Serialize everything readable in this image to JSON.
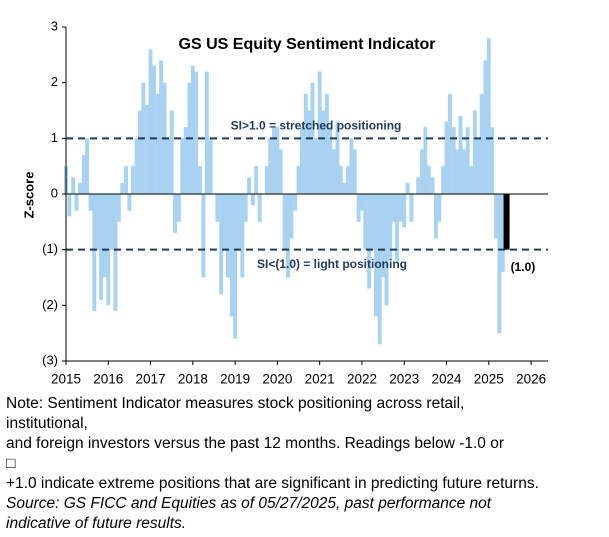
{
  "chart_data": {
    "type": "bar",
    "title": "GS US Equity Sentiment Indicator",
    "y_label": "Z-score",
    "color": "#a9d2f1",
    "xlim": [
      2015,
      2026.4
    ],
    "xticks": [
      2015,
      2016,
      2017,
      2018,
      2019,
      2020,
      2021,
      2022,
      2023,
      2024,
      2025,
      2026
    ],
    "ylim": [
      -3,
      3
    ],
    "yticks": [
      3,
      2,
      1,
      0,
      {
        "value": -1,
        "label": "(1)"
      },
      {
        "value": -2,
        "label": "(2)"
      },
      {
        "value": -3,
        "label": "(3)"
      }
    ],
    "x": [
      2015.0,
      2015.08,
      2015.17,
      2015.25,
      2015.33,
      2015.42,
      2015.5,
      2015.58,
      2015.67,
      2015.75,
      2015.83,
      2015.92,
      2016.0,
      2016.08,
      2016.17,
      2016.25,
      2016.33,
      2016.42,
      2016.5,
      2016.58,
      2016.67,
      2016.75,
      2016.83,
      2016.92,
      2017.0,
      2017.08,
      2017.17,
      2017.25,
      2017.33,
      2017.42,
      2017.5,
      2017.58,
      2017.67,
      2017.75,
      2017.83,
      2017.92,
      2018.0,
      2018.08,
      2018.17,
      2018.25,
      2018.33,
      2018.42,
      2018.5,
      2018.58,
      2018.67,
      2018.75,
      2018.83,
      2018.92,
      2019.0,
      2019.08,
      2019.17,
      2019.25,
      2019.33,
      2019.42,
      2019.5,
      2019.58,
      2019.67,
      2019.75,
      2019.83,
      2019.92,
      2020.0,
      2020.08,
      2020.17,
      2020.25,
      2020.33,
      2020.42,
      2020.5,
      2020.58,
      2020.67,
      2020.75,
      2020.83,
      2020.92,
      2021.0,
      2021.08,
      2021.17,
      2021.25,
      2021.33,
      2021.42,
      2021.5,
      2021.58,
      2021.67,
      2021.75,
      2021.83,
      2021.92,
      2022.0,
      2022.08,
      2022.17,
      2022.25,
      2022.33,
      2022.42,
      2022.5,
      2022.58,
      2022.67,
      2022.75,
      2022.83,
      2022.92,
      2023.0,
      2023.08,
      2023.17,
      2023.25,
      2023.33,
      2023.42,
      2023.5,
      2023.58,
      2023.67,
      2023.75,
      2023.83,
      2023.92,
      2024.0,
      2024.08,
      2024.17,
      2024.25,
      2024.33,
      2024.42,
      2024.5,
      2024.58,
      2024.67,
      2024.75,
      2024.83,
      2024.92,
      2025.0,
      2025.08,
      2025.17,
      2025.25,
      2025.33
    ],
    "values": [
      0.5,
      -0.4,
      0.3,
      -0.3,
      0.2,
      0.7,
      1.0,
      -0.3,
      -2.1,
      -1.0,
      -1.9,
      -1.5,
      -2.0,
      -1.0,
      -2.1,
      -0.5,
      0.2,
      0.5,
      -0.3,
      0.5,
      1.0,
      1.5,
      2.0,
      1.6,
      2.6,
      2.3,
      1.8,
      2.4,
      2.0,
      1.0,
      1.5,
      -0.7,
      -0.5,
      1.0,
      1.2,
      2.0,
      2.3,
      2.2,
      0.5,
      -1.5,
      2.2,
      1.0,
      0.0,
      -0.5,
      -1.8,
      -1.0,
      -1.5,
      -2.2,
      -2.6,
      -1.0,
      -1.5,
      -0.5,
      0.3,
      -0.2,
      0.5,
      -0.5,
      0.0,
      0.5,
      1.0,
      1.2,
      1.2,
      0.8,
      -1.0,
      -1.5,
      -0.8,
      -0.3,
      0.5,
      1.2,
      1.8,
      1.5,
      2.0,
      1.0,
      2.2,
      1.5,
      1.8,
      1.2,
      0.8,
      1.3,
      0.5,
      0.2,
      0.5,
      1.0,
      0.8,
      -0.5,
      -0.3,
      -1.0,
      -1.7,
      -1.0,
      -2.2,
      -2.7,
      -1.5,
      -2.0,
      -1.2,
      -0.5,
      -1.2,
      -0.5,
      -0.6,
      0.2,
      -0.5,
      0.0,
      0.3,
      0.8,
      1.2,
      0.5,
      0.3,
      -0.8,
      -0.5,
      0.5,
      1.3,
      1.8,
      1.2,
      0.8,
      1.4,
      0.8,
      1.2,
      0.5,
      1.5,
      1.0,
      1.8,
      2.4,
      2.8,
      1.2,
      -0.8,
      -2.5,
      -1.4
    ],
    "latest": {
      "x": 2025.42,
      "value": -1.0,
      "label": "(1.0)",
      "color": "#000000"
    },
    "reference_lines": [
      {
        "value": 1,
        "label": "SI>1.0 = stretched positioning"
      },
      {
        "value": -1,
        "label": "SI<(1.0) = light positioning"
      }
    ],
    "notes": [
      "Note: Sentiment Indicator measures stock positioning across retail,",
      "institutional,",
      "and foreign investors versus the past 12 months. Readings below -1.0 or",
      "□",
      "+1.0 indicate extreme positions that are significant in predicting future returns."
    ],
    "source": [
      "Source: GS FICC and Equities as of 05/27/2025, past performance not",
      "indicative of future results."
    ]
  }
}
